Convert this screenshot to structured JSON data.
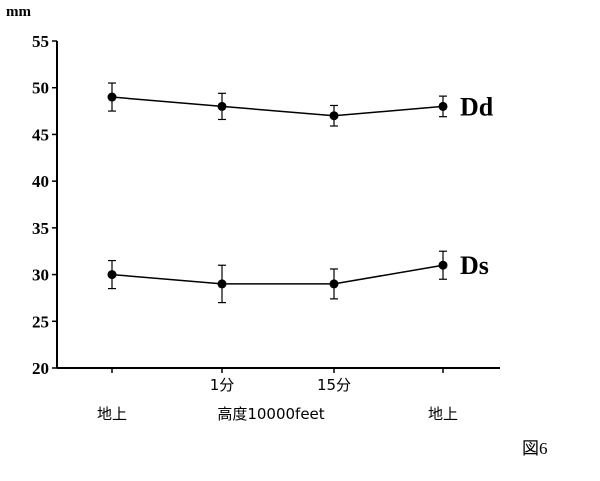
{
  "chart_data": {
    "type": "line",
    "unit_label": "mm",
    "categories": [
      "地上",
      "1分",
      "15分",
      "地上"
    ],
    "category_labels_row1": [
      "",
      "1分",
      "15分",
      ""
    ],
    "category_labels_row2": [
      "地上",
      "",
      "",
      "地上"
    ],
    "x_group_label": "高度10000feet",
    "ylim": [
      20,
      55
    ],
    "yticks": [
      "20",
      "25",
      "30",
      "35",
      "40",
      "45",
      "50",
      "55"
    ],
    "series": [
      {
        "name": "Dd",
        "values": [
          49,
          48,
          47,
          48
        ],
        "err": [
          1.5,
          1.4,
          1.1,
          1.1
        ]
      },
      {
        "name": "Ds",
        "values": [
          30,
          29,
          29,
          31
        ],
        "err": [
          1.5,
          2.0,
          1.6,
          1.5
        ]
      }
    ],
    "figure_label": "図6",
    "grid": false,
    "legend": "inline-right"
  }
}
